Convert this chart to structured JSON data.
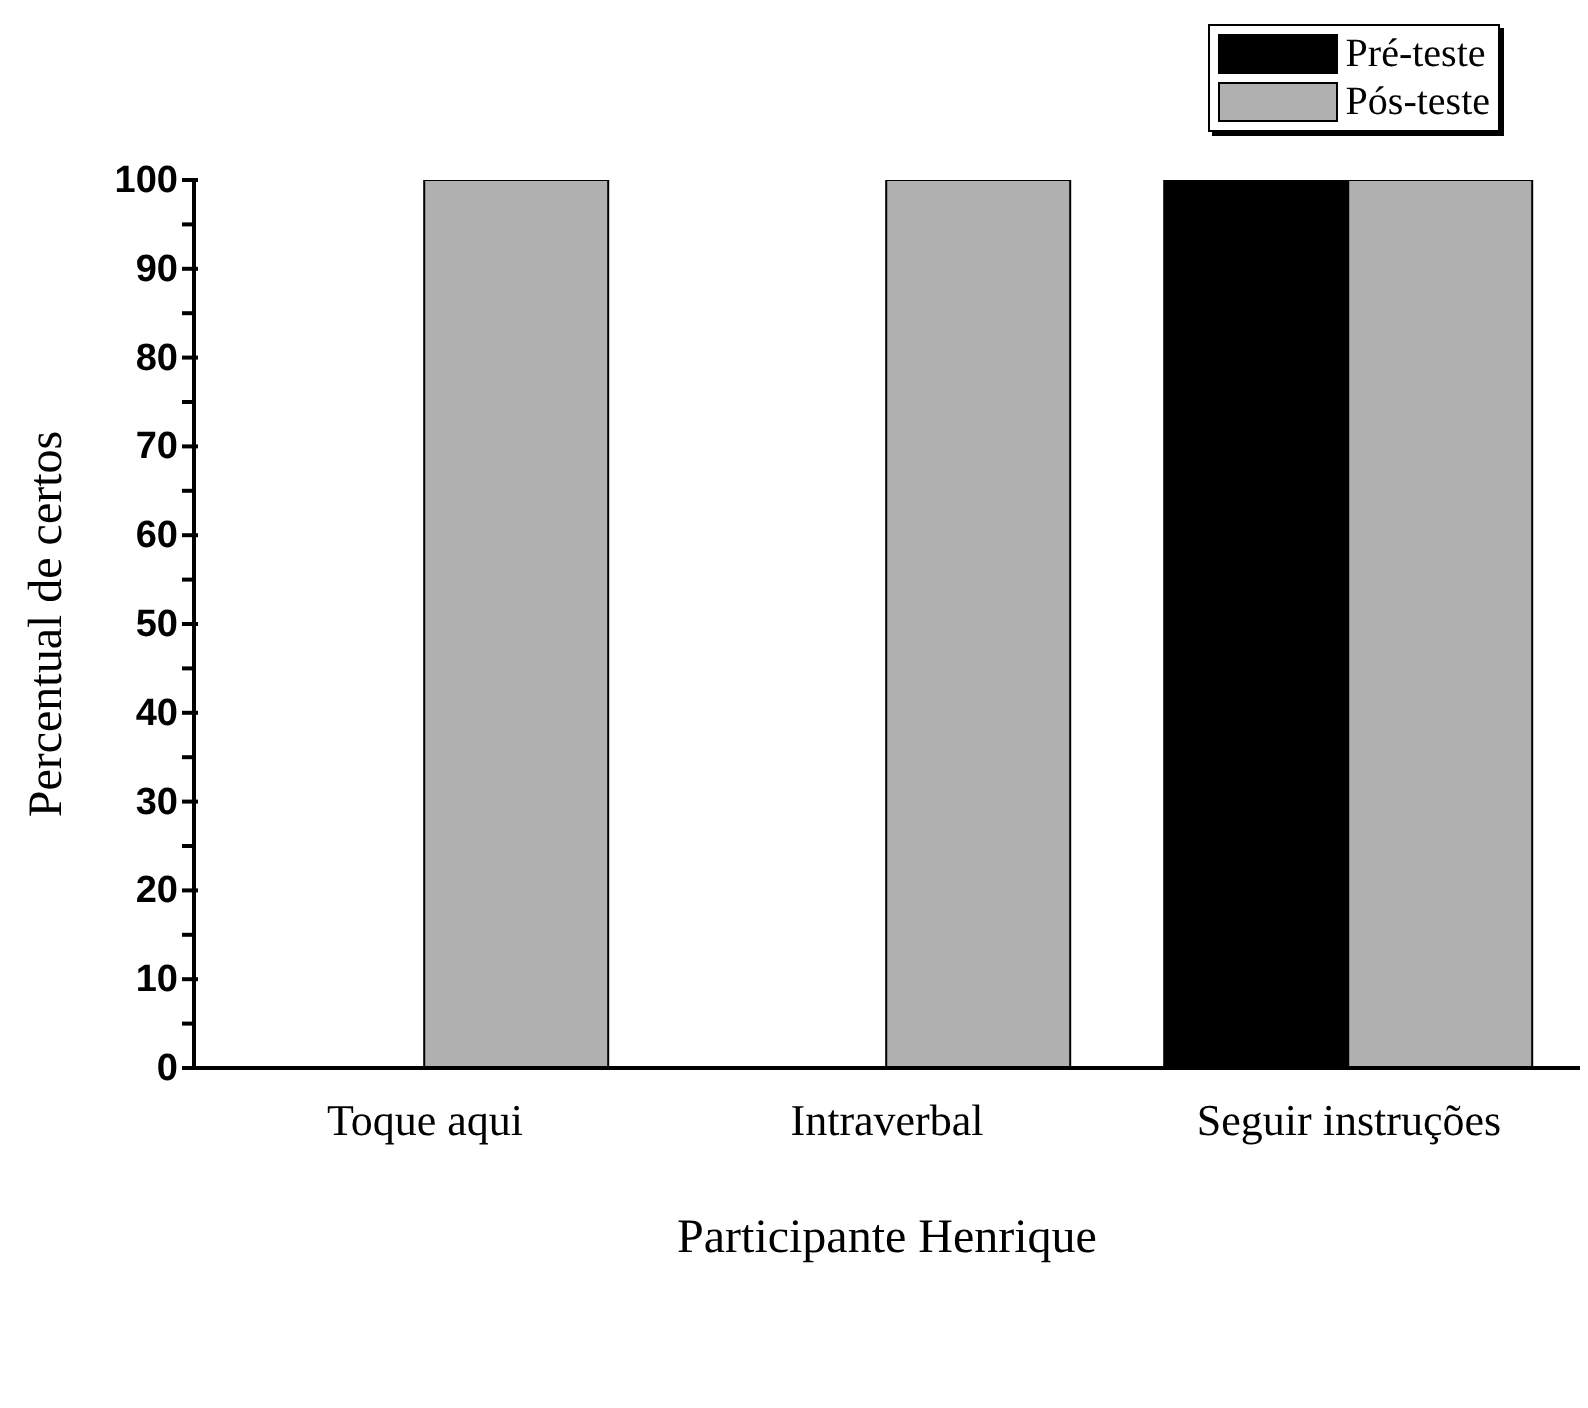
{
  "chart_data": {
    "type": "bar",
    "xlabel": "Participante Henrique",
    "ylabel": "Percentual de certos",
    "categories": [
      "Toque aqui",
      "Intraverbal",
      "Seguir instruções"
    ],
    "series": [
      {
        "name": "Pré-teste",
        "color": "#000000",
        "values": [
          0,
          0,
          100
        ]
      },
      {
        "name": "Pós-teste",
        "color": "#b0b0b0",
        "values": [
          100,
          100,
          100
        ]
      }
    ],
    "ylim": [
      0,
      100
    ],
    "yticks": [
      0,
      {
        "value": 5,
        "label": null
      },
      10,
      {
        "value": 15,
        "label": null
      },
      20,
      {
        "value": 25,
        "label": null
      },
      30,
      {
        "value": 35,
        "label": null
      },
      40,
      {
        "value": 45,
        "label": null
      },
      50,
      {
        "value": 55,
        "label": null
      },
      60,
      {
        "value": 65,
        "label": null
      },
      70,
      {
        "value": 75,
        "label": null
      },
      80,
      {
        "value": 85,
        "label": null
      },
      90,
      {
        "value": 95,
        "label": null
      },
      100
    ],
    "grid": false,
    "legend": "top right"
  }
}
